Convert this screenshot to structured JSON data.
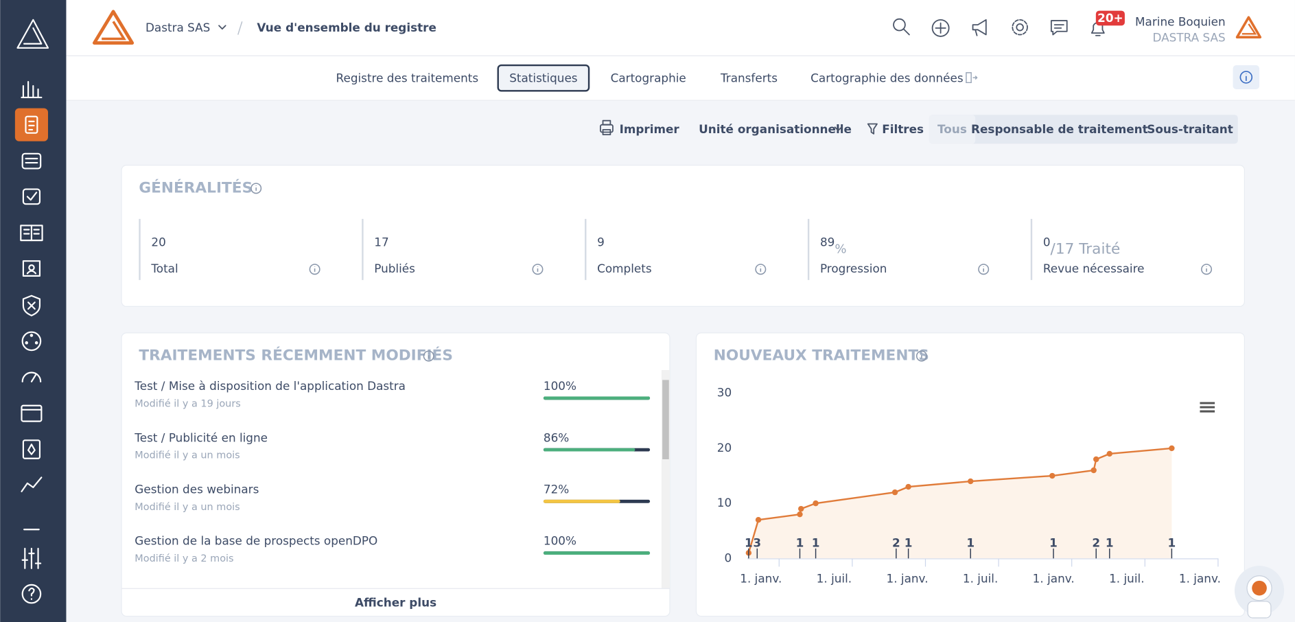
{
  "header": {
    "company": "Dastra SAS",
    "title": "Vue d'ensemble du registre",
    "notifications": "20+",
    "user_name": "Marine Boquien",
    "user_company": "DASTRA SAS"
  },
  "tabs": [
    "Registre des traitements",
    "Statistiques",
    "Cartographie",
    "Transferts",
    "Cartographie des données"
  ],
  "active_tab": 1,
  "toolbar": {
    "print": "Imprimer",
    "unit": "Unité organisationnelle",
    "filters": "Filtres",
    "segments": [
      "Tous",
      "Responsable de traitement",
      "Sous-traitant"
    ]
  },
  "general": {
    "title": "GÉNÉRALITÉS",
    "stats": [
      {
        "value": 20,
        "label": "Total"
      },
      {
        "value": 17,
        "label": "Publiés"
      },
      {
        "value": 9,
        "label": "Complets"
      },
      {
        "value": 89,
        "unit": "%",
        "label": "Progression"
      },
      {
        "value": 0,
        "suffix": "/17 Traité",
        "label": "Revue nécessaire"
      }
    ]
  },
  "recent": {
    "title": "TRAITEMENTS RÉCEMMENT MODIFIÉS",
    "items": [
      {
        "name": "Test / Mise à disposition de l'application Dastra",
        "modified": "Modifié il y a 19 jours",
        "progress": 100,
        "progress_label": "100%",
        "color": "#4caf7d"
      },
      {
        "name": "Test / Publicité en ligne",
        "modified": "Modifié il y a un mois",
        "progress": 86,
        "progress_label": "86%",
        "color": "#4caf7d"
      },
      {
        "name": "Gestion des webinars",
        "modified": "Modifié il y a un mois",
        "progress": 72,
        "progress_label": "72%",
        "color": "#f4c542"
      },
      {
        "name": "Gestion de la base de prospects openDPO",
        "modified": "Modifié il y a 2 mois",
        "progress": 100,
        "progress_label": "100%",
        "color": "#4caf7d"
      }
    ],
    "more": "Afficher plus"
  },
  "chart_data": {
    "type": "line",
    "title": "NOUVEAUX TRAITEMENTS",
    "color": "#e07b39",
    "fill_color": "#fdf3ea",
    "x": [
      -2.5,
      -1.7,
      1.7,
      1.8,
      3.0,
      9.5,
      10.6,
      15.7,
      22.4,
      25.8,
      26.0,
      27.1,
      32.2
    ],
    "values": [
      1,
      7,
      8,
      9,
      10,
      12,
      13,
      14,
      15,
      16,
      18,
      19,
      20
    ],
    "flags": {
      "x": [
        -2.5,
        -1.8,
        1.7,
        3.0,
        9.6,
        10.6,
        15.7,
        22.5,
        26.0,
        27.1,
        32.2
      ],
      "values": [
        1,
        3,
        1,
        1,
        2,
        1,
        1,
        1,
        2,
        1,
        1
      ]
    },
    "xlim": [
      -2.6,
      36
    ],
    "ylim": [
      0,
      30
    ],
    "yticks": [
      0,
      10,
      20,
      30
    ],
    "grid": false,
    "xticks": [
      {
        "value": 0,
        "label": "1. janv."
      },
      {
        "value": 6,
        "label": "1. juil."
      },
      {
        "value": 12,
        "label": "1. janv."
      },
      {
        "value": 18,
        "label": "1. juil."
      },
      {
        "value": 24,
        "label": "1. janv."
      },
      {
        "value": 30,
        "label": "1. juil."
      },
      {
        "value": 36,
        "label": "1. janv."
      }
    ]
  }
}
